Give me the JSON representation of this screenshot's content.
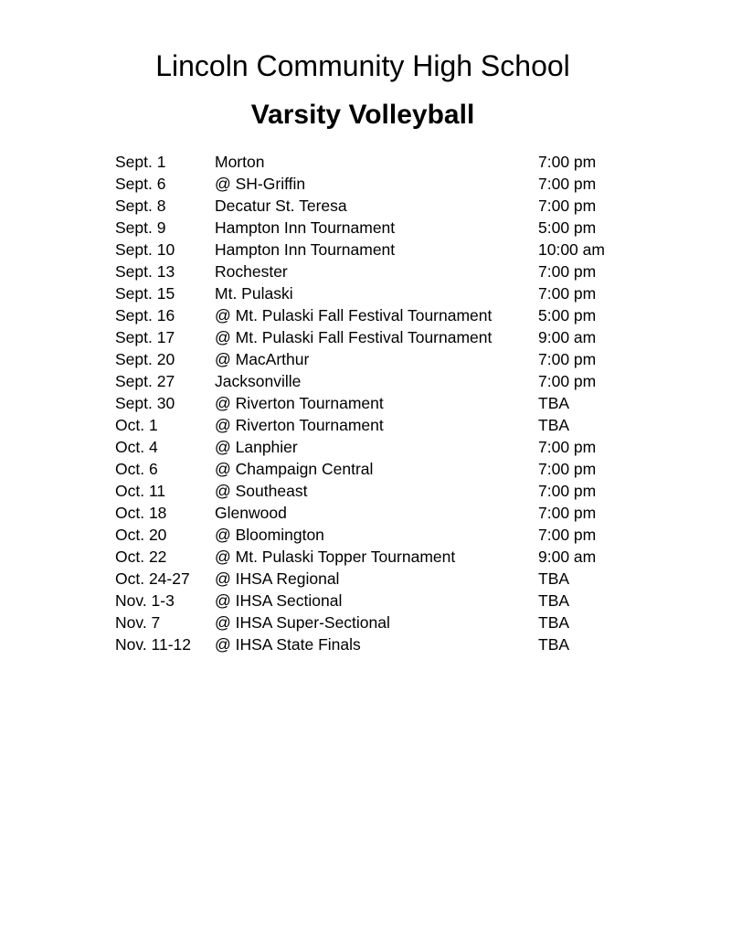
{
  "header": {
    "title": "Lincoln Community High School",
    "subtitle": "Varsity Volleyball"
  },
  "schedule": [
    {
      "date": "Sept. 1",
      "opponent": "Morton",
      "time": "7:00 pm"
    },
    {
      "date": "Sept. 6",
      "opponent": "@ SH-Griffin",
      "time": "7:00 pm"
    },
    {
      "date": "Sept. 8",
      "opponent": "Decatur St. Teresa",
      "time": "7:00 pm"
    },
    {
      "date": "Sept. 9",
      "opponent": "Hampton Inn Tournament",
      "time": "5:00 pm"
    },
    {
      "date": "Sept. 10",
      "opponent": "Hampton Inn Tournament",
      "time": "10:00 am"
    },
    {
      "date": "Sept. 13",
      "opponent": "Rochester",
      "time": "7:00 pm"
    },
    {
      "date": "Sept. 15",
      "opponent": "Mt. Pulaski",
      "time": "7:00 pm"
    },
    {
      "date": "Sept. 16",
      "opponent": "@ Mt. Pulaski Fall Festival Tournament",
      "time": "5:00 pm"
    },
    {
      "date": "Sept. 17",
      "opponent": "@ Mt. Pulaski Fall Festival Tournament",
      "time": "9:00 am"
    },
    {
      "date": "Sept. 20",
      "opponent": "@ MacArthur",
      "time": "7:00 pm"
    },
    {
      "date": "Sept. 27",
      "opponent": "Jacksonville",
      "time": "7:00 pm"
    },
    {
      "date": "Sept. 30",
      "opponent": "@ Riverton Tournament",
      "time": "TBA"
    },
    {
      "date": "Oct. 1",
      "opponent": "@ Riverton Tournament",
      "time": "TBA"
    },
    {
      "date": "Oct. 4",
      "opponent": "@ Lanphier",
      "time": "7:00 pm"
    },
    {
      "date": "Oct. 6",
      "opponent": "@ Champaign Central",
      "time": "7:00 pm"
    },
    {
      "date": "Oct. 11",
      "opponent": "@ Southeast",
      "time": "7:00 pm"
    },
    {
      "date": "Oct. 18",
      "opponent": "Glenwood",
      "time": "7:00 pm"
    },
    {
      "date": "Oct. 20",
      "opponent": "@ Bloomington",
      "time": "7:00 pm"
    },
    {
      "date": "Oct. 22",
      "opponent": "@ Mt. Pulaski Topper Tournament",
      "time": "9:00 am"
    },
    {
      "date": "Oct. 24-27",
      "opponent": "@ IHSA Regional",
      "time": "TBA"
    },
    {
      "date": "Nov. 1-3",
      "opponent": "@ IHSA Sectional",
      "time": "TBA"
    },
    {
      "date": "Nov. 7",
      "opponent": "@ IHSA Super-Sectional",
      "time": "TBA"
    },
    {
      "date": "Nov. 11-12",
      "opponent": "@ IHSA State Finals",
      "time": "TBA"
    }
  ]
}
